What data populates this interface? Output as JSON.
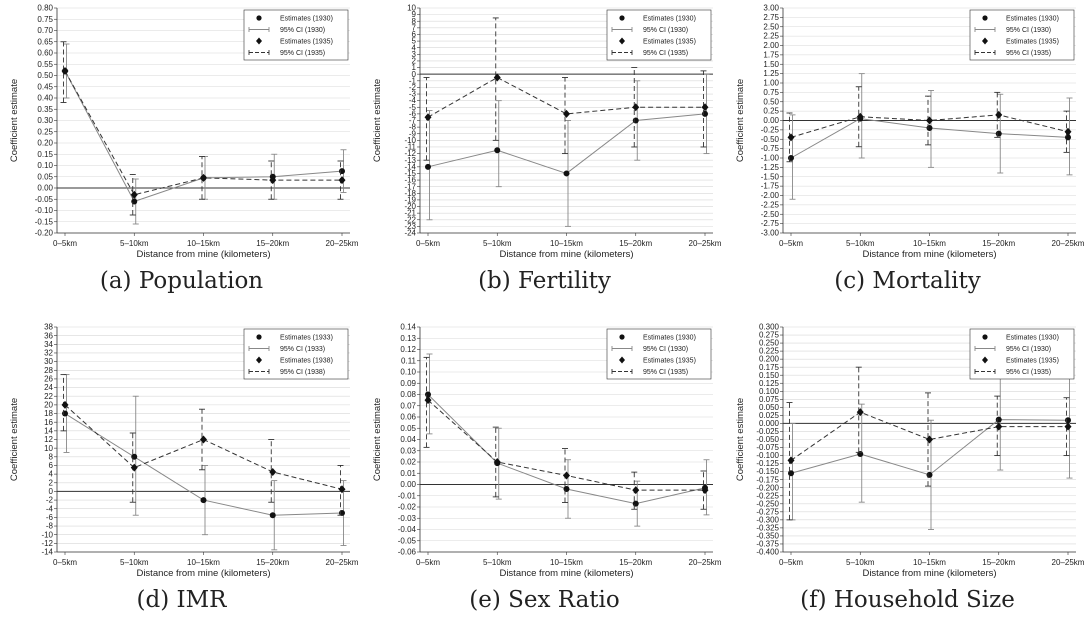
{
  "figure": {
    "captions": [
      "(a) Population",
      "(b) Fertility",
      "(c) Mortality",
      "(d) IMR",
      "(e) Sex Ratio",
      "(f) Household Size"
    ]
  },
  "chart_data": [
    {
      "type": "line",
      "ylabel": "Coefficient estimate",
      "xlabel": "Distance from mine (kilometers)",
      "categories": [
        "0–5km",
        "5–10km",
        "10–15km",
        "15–20km",
        "20–25km"
      ],
      "ylim": [
        -0.2,
        0.8
      ],
      "yticks": [
        "-0.20",
        "-0.15",
        "-0.10",
        "-0.05",
        "0.00",
        "0.05",
        "0.10",
        "0.15",
        "0.20",
        "0.25",
        "0.30",
        "0.35",
        "0.40",
        "0.45",
        "0.50",
        "0.55",
        "0.60",
        "0.65",
        "0.70",
        "0.75",
        "0.80"
      ],
      "zero_line": 0,
      "grid": true,
      "legend_position": "top-right",
      "legend": [
        "Estimates (1930)",
        "95% CI (1930)",
        "Estimates (1935)",
        "95% CI (1935)"
      ],
      "series": [
        {
          "name": "Estimates (1930)",
          "values": [
            0.52,
            -0.06,
            0.045,
            0.05,
            0.075
          ],
          "ci_low": [
            0.4,
            -0.16,
            -0.05,
            -0.05,
            -0.02
          ],
          "ci_high": [
            0.64,
            0.04,
            0.14,
            0.15,
            0.17
          ]
        },
        {
          "name": "Estimates (1935)",
          "values": [
            0.52,
            -0.03,
            0.045,
            0.035,
            0.035
          ],
          "ci_low": [
            0.38,
            -0.12,
            -0.05,
            -0.05,
            -0.05
          ],
          "ci_high": [
            0.65,
            0.06,
            0.14,
            0.12,
            0.12
          ]
        }
      ]
    },
    {
      "type": "line",
      "ylabel": "Coefficient estimate",
      "xlabel": "Distance from mine (kilometers)",
      "categories": [
        "0–5km",
        "5–10km",
        "10–15km",
        "15–20km",
        "20–25km"
      ],
      "ylim": [
        -24,
        10
      ],
      "yticks": [
        "-24",
        "-23",
        "-22",
        "-21",
        "-20",
        "-19",
        "-18",
        "-17",
        "-16",
        "-15",
        "-14",
        "-13",
        "-12",
        "-11",
        "-10",
        "-9",
        "-8",
        "-7",
        "-6",
        "-5",
        "-4",
        "-3",
        "-2",
        "-1",
        "0",
        "1",
        "2",
        "3",
        "4",
        "5",
        "6",
        "7",
        "8",
        "9",
        "10"
      ],
      "zero_line": 0,
      "grid": true,
      "legend_position": "top-right",
      "legend": [
        "Estimates (1930)",
        "95% CI (1930)",
        "Estimates (1935)",
        "95% CI (1935)"
      ],
      "series": [
        {
          "name": "Estimates (1930)",
          "values": [
            -14.0,
            -11.5,
            -15.0,
            -7.0,
            -6.0
          ],
          "ci_low": [
            -22.0,
            -17.0,
            -23.0,
            -13.0,
            -12.0
          ],
          "ci_high": [
            -5.5,
            -4.0,
            -7.0,
            -1.0,
            0.0
          ]
        },
        {
          "name": "Estimates (1935)",
          "values": [
            -6.5,
            -0.5,
            -6.0,
            -5.0,
            -5.0
          ],
          "ci_low": [
            -13.0,
            -10.0,
            -12.0,
            -11.0,
            -11.0
          ],
          "ci_high": [
            -0.5,
            8.5,
            -0.5,
            1.0,
            0.5
          ]
        }
      ]
    },
    {
      "type": "line",
      "ylabel": "Coefficient estimate",
      "xlabel": "Distance from mine (kilometers)",
      "categories": [
        "0–5km",
        "5–10km",
        "10–15km",
        "15–20km",
        "20–25km"
      ],
      "ylim": [
        -3.0,
        3.0
      ],
      "yticks": [
        "-3.00",
        "-2.75",
        "-2.50",
        "-2.25",
        "-2.00",
        "-1.75",
        "-1.50",
        "-1.25",
        "-1.00",
        "-0.75",
        "-0.50",
        "-0.25",
        "0.00",
        "0.25",
        "0.50",
        "0.75",
        "1.00",
        "1.25",
        "1.50",
        "1.75",
        "2.00",
        "2.25",
        "2.50",
        "2.75",
        "3.00"
      ],
      "zero_line": 0,
      "grid": true,
      "legend_position": "top-right",
      "legend": [
        "Estimates (1930)",
        "95% CI (1930)",
        "Estimates (1935)",
        "95% CI (1935)"
      ],
      "series": [
        {
          "name": "Estimates (1930)",
          "values": [
            -1.0,
            0.05,
            -0.2,
            -0.35,
            -0.45
          ],
          "ci_low": [
            -2.1,
            -1.0,
            -1.25,
            -1.4,
            -1.45
          ],
          "ci_high": [
            0.15,
            1.25,
            0.8,
            0.7,
            0.6
          ]
        },
        {
          "name": "Estimates (1935)",
          "values": [
            -0.45,
            0.1,
            0.0,
            0.15,
            -0.3
          ],
          "ci_low": [
            -1.1,
            -0.7,
            -0.65,
            -0.45,
            -0.85
          ],
          "ci_high": [
            0.2,
            0.9,
            0.65,
            0.75,
            0.25
          ]
        }
      ]
    },
    {
      "type": "line",
      "ylabel": "Coefficient estimate",
      "xlabel": "Distance from mine (kilometers)",
      "categories": [
        "0–5km",
        "5–10km",
        "10–15km",
        "15–20km",
        "20–25km"
      ],
      "ylim": [
        -14,
        38
      ],
      "yticks": [
        "-14",
        "-12",
        "-10",
        "-8",
        "-6",
        "-4",
        "-2",
        "0",
        "2",
        "4",
        "6",
        "8",
        "10",
        "12",
        "14",
        "16",
        "18",
        "20",
        "22",
        "24",
        "26",
        "28",
        "30",
        "32",
        "34",
        "36",
        "38"
      ],
      "zero_line": 0,
      "grid": true,
      "legend_position": "top-right",
      "legend": [
        "Estimates (1933)",
        "95% CI (1933)",
        "Estimates (1938)",
        "95% CI (1938)"
      ],
      "series": [
        {
          "name": "Estimates (1933)",
          "values": [
            18.0,
            8.0,
            -2.0,
            -5.5,
            -5.0
          ],
          "ci_low": [
            9.0,
            -5.5,
            -10.0,
            -13.5,
            -12.5
          ],
          "ci_high": [
            27.0,
            22.0,
            6.0,
            2.5,
            2.5
          ]
        },
        {
          "name": "Estimates (1938)",
          "values": [
            20.0,
            5.5,
            12.0,
            4.5,
            0.5
          ],
          "ci_low": [
            14.0,
            -2.5,
            5.0,
            -2.5,
            -5.5
          ],
          "ci_high": [
            27.0,
            13.5,
            19.0,
            12.0,
            6.0
          ]
        }
      ]
    },
    {
      "type": "line",
      "ylabel": "Coefficient estimate",
      "xlabel": "Distance from mine (kilometers)",
      "categories": [
        "0–5km",
        "5–10km",
        "10–15km",
        "15–20km",
        "20–25km"
      ],
      "ylim": [
        -0.06,
        0.14
      ],
      "yticks": [
        "-0.06",
        "-0.05",
        "-0.04",
        "-0.03",
        "-0.02",
        "-0.01",
        "0.00",
        "0.01",
        "0.02",
        "0.03",
        "0.04",
        "0.05",
        "0.06",
        "0.07",
        "0.08",
        "0.09",
        "0.10",
        "0.11",
        "0.12",
        "0.13",
        "0.14"
      ],
      "zero_line": 0,
      "grid": true,
      "legend_position": "top-right",
      "legend": [
        "Estimates (1930)",
        "95% CI (1930)",
        "Estimates (1935)",
        "95% CI (1935)"
      ],
      "series": [
        {
          "name": "Estimates (1930)",
          "values": [
            0.08,
            0.019,
            -0.004,
            -0.017,
            -0.003
          ],
          "ci_low": [
            0.045,
            -0.013,
            -0.03,
            -0.037,
            -0.027
          ],
          "ci_high": [
            0.116,
            0.05,
            0.022,
            0.003,
            0.022
          ]
        },
        {
          "name": "Estimates (1935)",
          "values": [
            0.075,
            0.02,
            0.008,
            -0.005,
            -0.005
          ],
          "ci_low": [
            0.033,
            -0.011,
            -0.016,
            -0.022,
            -0.022
          ],
          "ci_high": [
            0.113,
            0.051,
            0.032,
            0.011,
            0.012
          ]
        }
      ]
    },
    {
      "type": "line",
      "ylabel": "Coefficient estimate",
      "xlabel": "Distance from mine (kilometers)",
      "categories": [
        "0–5km",
        "5–10km",
        "10–15km",
        "15–20km",
        "20–25km"
      ],
      "ylim": [
        -0.4,
        0.3
      ],
      "yticks": [
        "-0.400",
        "-0.375",
        "-0.350",
        "-0.325",
        "-0.300",
        "-0.275",
        "-0.250",
        "-0.225",
        "-0.200",
        "-0.175",
        "-0.150",
        "-0.125",
        "-0.100",
        "-0.075",
        "-0.050",
        "-0.025",
        "0.000",
        "0.025",
        "0.050",
        "0.075",
        "0.100",
        "0.125",
        "0.150",
        "0.175",
        "0.200",
        "0.225",
        "0.250",
        "0.275",
        "0.300"
      ],
      "zero_line": 0,
      "grid": true,
      "legend_position": "top-right",
      "legend": [
        "Estimates (1930)",
        "95% CI (1930)",
        "Estimates (1935)",
        "95% CI (1935)"
      ],
      "series": [
        {
          "name": "Estimates (1930)",
          "values": [
            -0.155,
            -0.095,
            -0.16,
            0.012,
            0.01
          ],
          "ci_low": [
            -0.3,
            -0.245,
            -0.33,
            -0.145,
            -0.17
          ],
          "ci_high": [
            0.0,
            0.06,
            0.01,
            0.17,
            0.19
          ]
        },
        {
          "name": "Estimates (1935)",
          "values": [
            -0.115,
            0.035,
            -0.05,
            -0.01,
            -0.01
          ],
          "ci_low": [
            -0.3,
            -0.09,
            -0.195,
            -0.1,
            -0.1
          ],
          "ci_high": [
            0.065,
            0.175,
            0.095,
            0.085,
            0.08
          ]
        }
      ]
    }
  ]
}
